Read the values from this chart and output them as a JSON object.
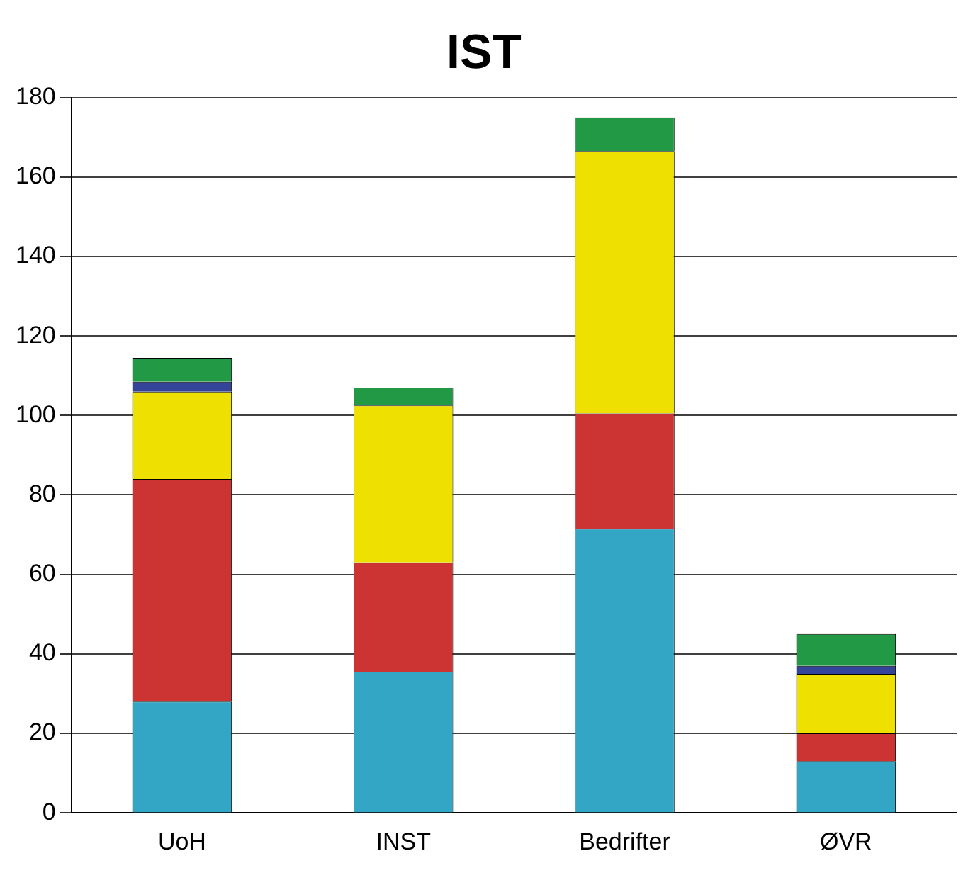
{
  "chart_data": {
    "type": "bar",
    "title": "IST",
    "categories": [
      "UoH",
      "INST",
      "Bedrifter",
      "ØVR"
    ],
    "stacked": true,
    "ylim": [
      0,
      180
    ],
    "yticks": [
      0,
      20,
      40,
      60,
      80,
      100,
      120,
      140,
      160,
      180
    ],
    "grid": "y",
    "legend": false,
    "series": [
      {
        "color": "#33a6c6",
        "values": [
          28,
          35.5,
          71.5,
          13
        ]
      },
      {
        "color": "#cc3333",
        "values": [
          56,
          27.5,
          29,
          7
        ]
      },
      {
        "color": "#eee000",
        "values": [
          22,
          39.5,
          66,
          15
        ]
      },
      {
        "color": "#334499",
        "values": [
          2.5,
          0,
          0,
          2
        ]
      },
      {
        "color": "#229944",
        "values": [
          6,
          4.5,
          8.5,
          8
        ]
      }
    ]
  }
}
